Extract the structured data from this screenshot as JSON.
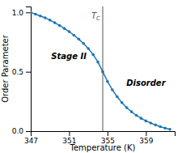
{
  "chart_data": {
    "type": "line",
    "xlabel": "Temperature (K)",
    "ylabel": "Order Parameter",
    "x": [
      347.0,
      347.5,
      348.0,
      348.5,
      349.0,
      349.5,
      350.0,
      350.5,
      351.0,
      351.5,
      352.0,
      352.5,
      353.0,
      353.5,
      354.0,
      354.5,
      355.0,
      355.5,
      356.0,
      356.5,
      357.0,
      357.5,
      358.0,
      358.5,
      359.0,
      359.5,
      360.0,
      360.5,
      361.0,
      361.5
    ],
    "values": [
      1.0,
      0.985,
      0.97,
      0.955,
      0.935,
      0.913,
      0.89,
      0.865,
      0.838,
      0.808,
      0.775,
      0.738,
      0.695,
      0.645,
      0.582,
      0.5,
      0.418,
      0.348,
      0.29,
      0.24,
      0.198,
      0.163,
      0.133,
      0.108,
      0.086,
      0.068,
      0.052,
      0.038,
      0.026,
      0.015
    ],
    "marker": "circle",
    "xlim": [
      347,
      362
    ],
    "ylim": [
      0.0,
      1.05
    ],
    "xticks": [
      347,
      351,
      355,
      359
    ],
    "yticks": [
      {
        "value": 0.0,
        "label": "0.0"
      },
      0.5,
      {
        "value": 1.0,
        "label": "1.0"
      }
    ],
    "grid": false,
    "annotations": [
      {
        "text": "TC",
        "x": 354.5
      },
      {
        "text": "Stage II"
      },
      {
        "text": "Disorder"
      }
    ]
  }
}
